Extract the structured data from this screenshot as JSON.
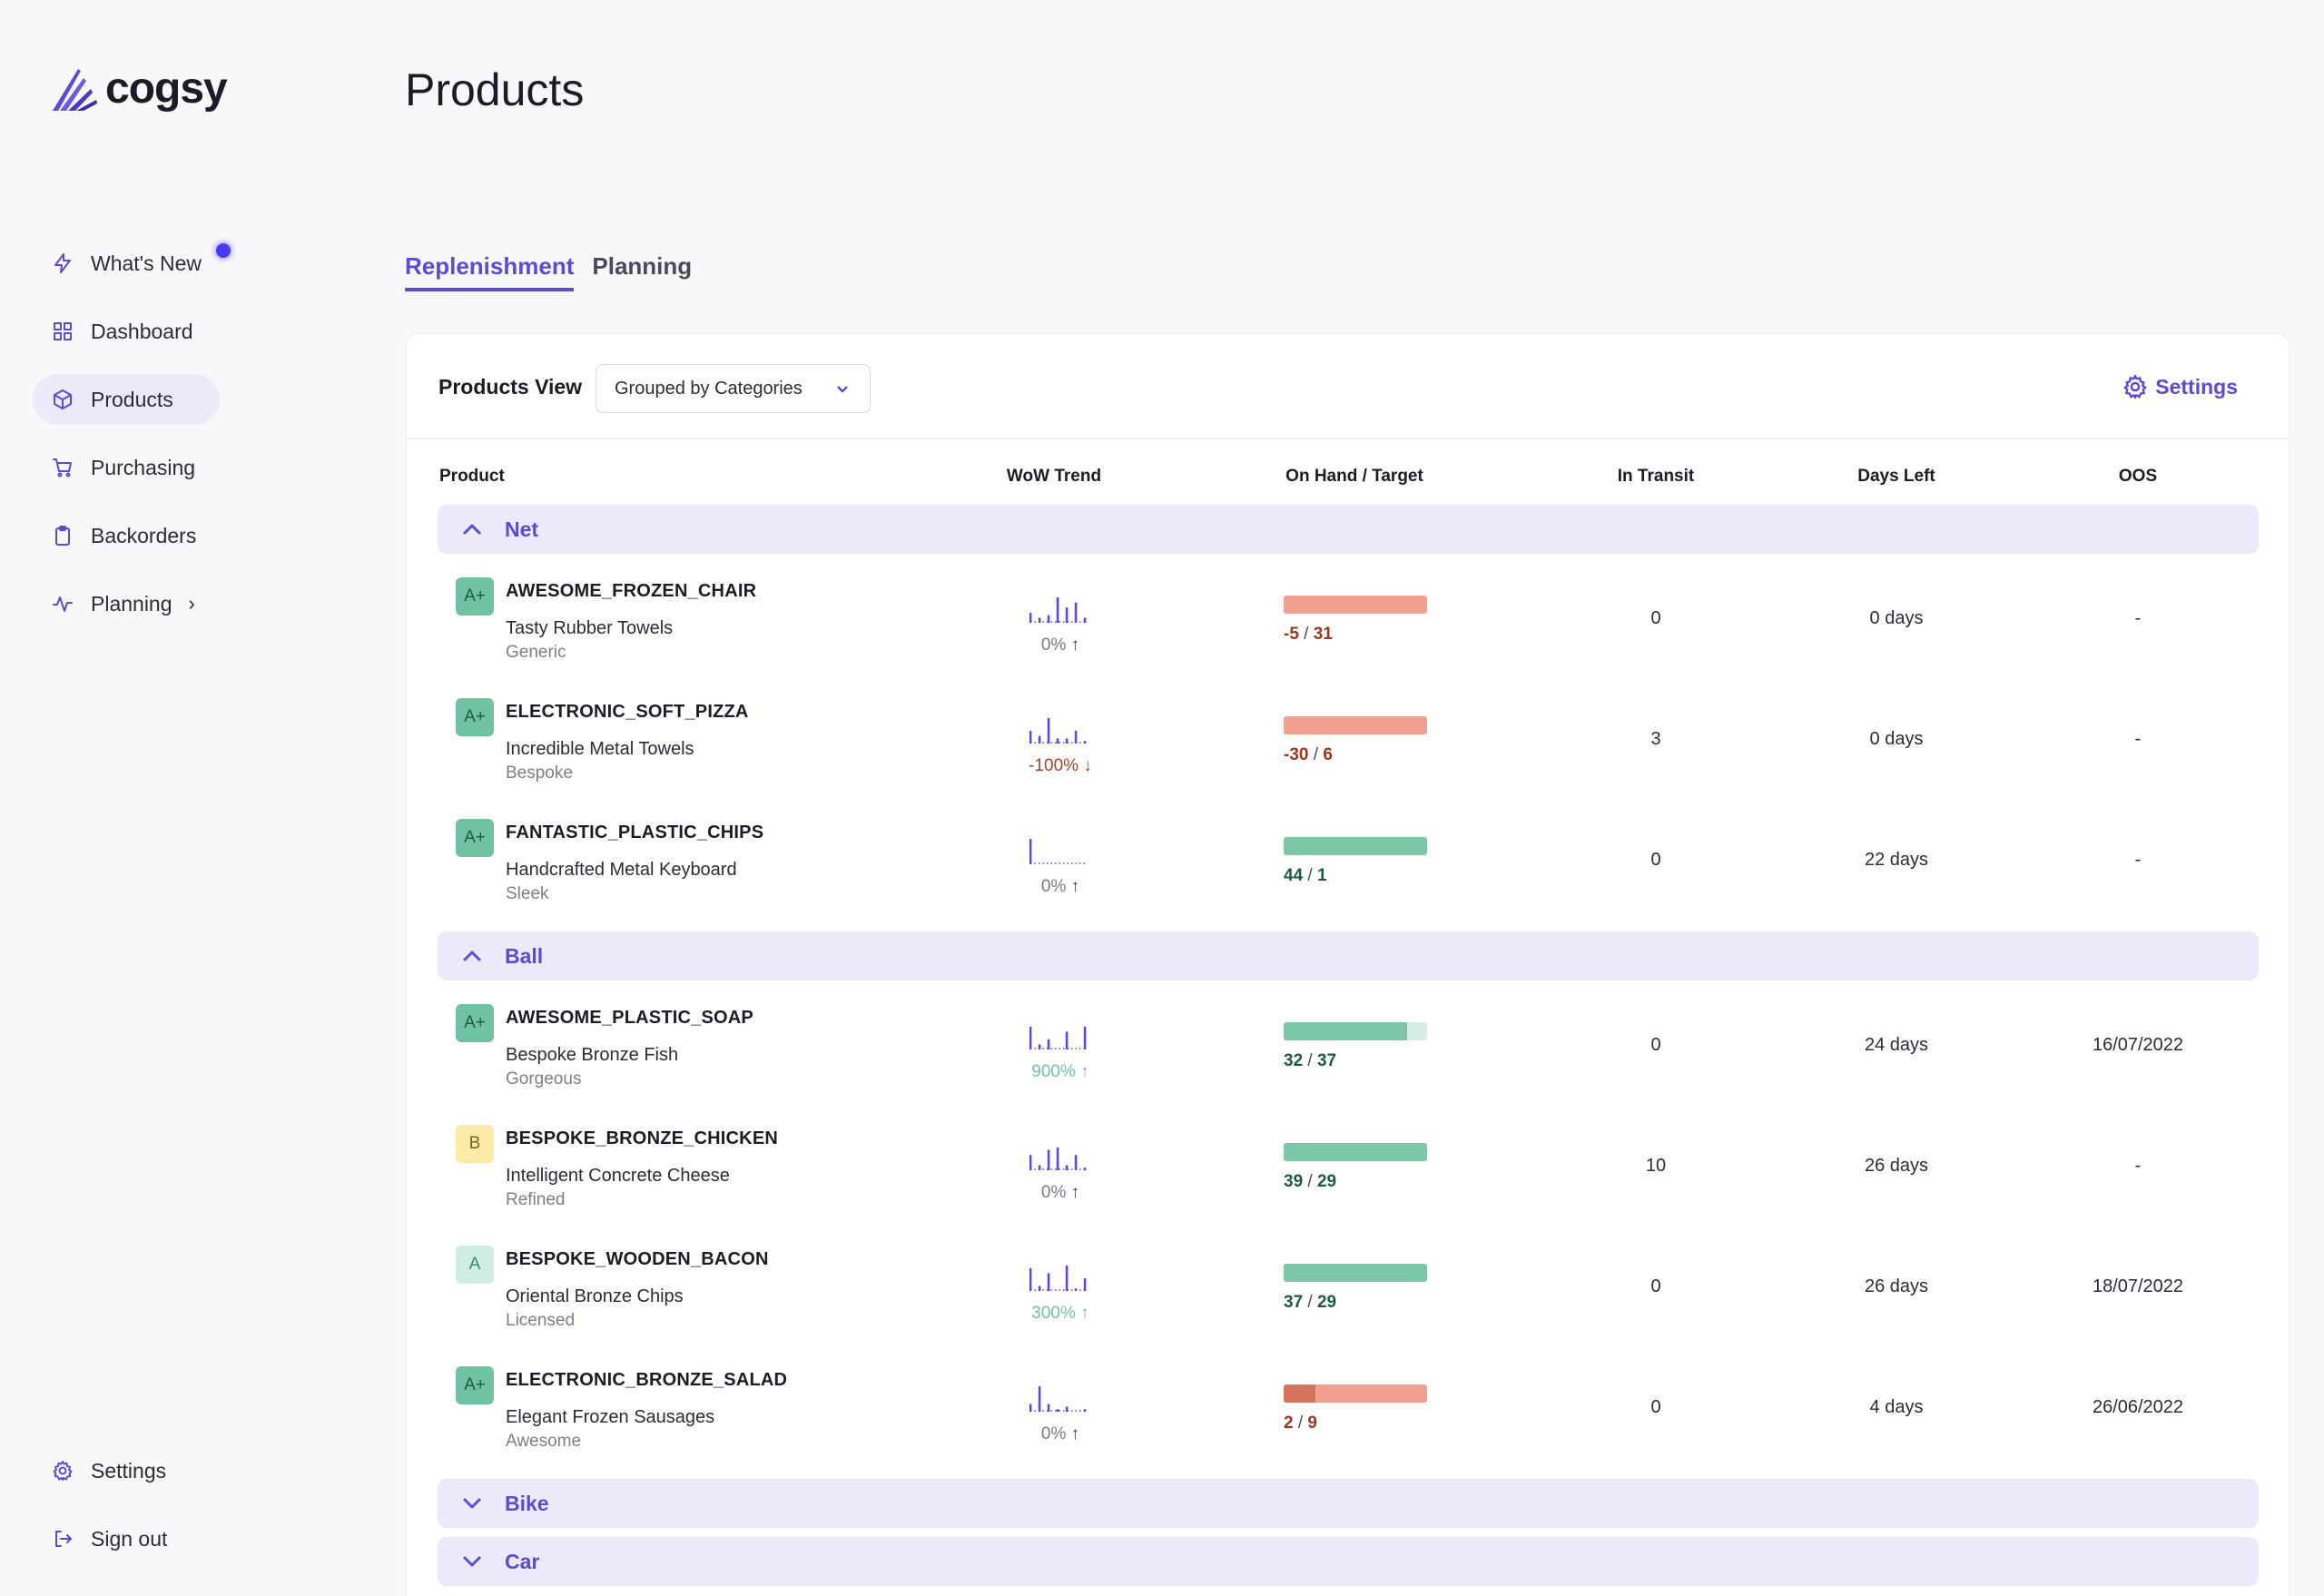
{
  "app": {
    "logo_text": "cogsy"
  },
  "sidebar": {
    "items": [
      {
        "label": "What's New",
        "icon": "lightning-icon",
        "active": false,
        "badge": true
      },
      {
        "label": "Dashboard",
        "icon": "grid-icon",
        "active": false
      },
      {
        "label": "Products",
        "icon": "box-icon",
        "active": true
      },
      {
        "label": "Purchasing",
        "icon": "cart-icon",
        "active": false
      },
      {
        "label": "Backorders",
        "icon": "clipboard-icon",
        "active": false
      },
      {
        "label": "Planning",
        "icon": "activity-icon",
        "active": false,
        "expandable": true
      }
    ],
    "bottom": [
      {
        "label": "Settings",
        "icon": "gear-icon"
      },
      {
        "label": "Sign out",
        "icon": "sign-out-icon"
      }
    ]
  },
  "page": {
    "title": "Products",
    "tabs": [
      {
        "label": "Replenishment",
        "active": true
      },
      {
        "label": "Planning",
        "active": false
      }
    ]
  },
  "view": {
    "label": "Products View",
    "selected": "Grouped by Categories",
    "settings_label": "Settings"
  },
  "table": {
    "columns": [
      "Product",
      "WoW Trend",
      "On Hand / Target",
      "In Transit",
      "Days Left",
      "OOS"
    ],
    "groups": [
      {
        "name": "Net",
        "expanded": true,
        "rows": [
          {
            "grade": "A+",
            "sku": "AWESOME_FROZEN_CHAIR",
            "name": "Tasty Rubber Towels",
            "category": "Generic",
            "trend_bars": [
              4,
              2,
              3,
              10,
              6,
              8,
              2
            ],
            "trend_pct": "0%",
            "trend_dir": "up",
            "trend_tone": "neutral",
            "on_hand": "-5",
            "target": "31",
            "fill": 0,
            "status": "low",
            "in_transit": "0",
            "days_left": "0 days",
            "oos": "-"
          },
          {
            "grade": "A+",
            "sku": "ELECTRONIC_SOFT_PIZZA",
            "name": "Incredible Metal Towels",
            "category": "Bespoke",
            "trend_bars": [
              5,
              3,
              10,
              2,
              2,
              5,
              1
            ],
            "trend_pct": "-100%",
            "trend_dir": "down",
            "trend_tone": "down",
            "on_hand": "-30",
            "target": "6",
            "fill": 0,
            "status": "low",
            "in_transit": "3",
            "days_left": "0 days",
            "oos": "-"
          },
          {
            "grade": "A+",
            "sku": "FANTASTIC_PLASTIC_CHIPS",
            "name": "Handcrafted Metal Keyboard",
            "category": "Sleek",
            "trend_bars": [
              10,
              0,
              0,
              0,
              0,
              0,
              0
            ],
            "trend_pct": "0%",
            "trend_dir": "up",
            "trend_tone": "neutral",
            "on_hand": "44",
            "target": "1",
            "fill": 1,
            "status": "ok",
            "in_transit": "0",
            "days_left": "22 days",
            "oos": "-"
          }
        ]
      },
      {
        "name": "Ball",
        "expanded": true,
        "rows": [
          {
            "grade": "A+",
            "sku": "AWESOME_PLASTIC_SOAP",
            "name": "Bespoke Bronze Fish",
            "category": "Gorgeous",
            "trend_bars": [
              9,
              2,
              4,
              0,
              7,
              0,
              9
            ],
            "trend_pct": "900%",
            "trend_dir": "up",
            "trend_tone": "up",
            "on_hand": "32",
            "target": "37",
            "fill": 0.86,
            "status": "ok",
            "in_transit": "0",
            "days_left": "24 days",
            "oos": "16/07/2022"
          },
          {
            "grade": "B",
            "sku": "BESPOKE_BRONZE_CHICKEN",
            "name": "Intelligent Concrete Cheese",
            "category": "Refined",
            "trend_bars": [
              6,
              2,
              8,
              9,
              2,
              6,
              1
            ],
            "trend_pct": "0%",
            "trend_dir": "up",
            "trend_tone": "neutral",
            "on_hand": "39",
            "target": "29",
            "fill": 1,
            "status": "ok",
            "in_transit": "10",
            "days_left": "26 days",
            "oos": "-"
          },
          {
            "grade": "A",
            "sku": "BESPOKE_WOODEN_BACON",
            "name": "Oriental Bronze Chips",
            "category": "Licensed",
            "trend_bars": [
              9,
              2,
              7,
              0,
              10,
              1,
              5
            ],
            "trend_pct": "300%",
            "trend_dir": "up",
            "trend_tone": "up",
            "on_hand": "37",
            "target": "29",
            "fill": 1,
            "status": "ok",
            "in_transit": "0",
            "days_left": "26 days",
            "oos": "18/07/2022"
          },
          {
            "grade": "A+",
            "sku": "ELECTRONIC_BRONZE_SALAD",
            "name": "Elegant Frozen Sausages",
            "category": "Awesome",
            "trend_bars": [
              3,
              10,
              3,
              1,
              2,
              0,
              1
            ],
            "trend_pct": "0%",
            "trend_dir": "up",
            "trend_tone": "neutral",
            "on_hand": "2",
            "target": "9",
            "fill": 0.22,
            "status": "low",
            "in_transit": "0",
            "days_left": "4 days",
            "oos": "26/06/2022"
          }
        ]
      },
      {
        "name": "Bike",
        "expanded": false,
        "rows": []
      },
      {
        "name": "Car",
        "expanded": false,
        "rows": []
      }
    ]
  },
  "colors": {
    "accent": "#5a4bd6",
    "bar_ok": "#7cc7a7",
    "bar_ok_bg": "#d6efe4",
    "bar_low": "#f0a08f",
    "bar_low_fill": "#d4735e",
    "text_ok": "#1e5a44",
    "text_low": "#a0351e",
    "trend_bar": "#5a4bd6"
  }
}
